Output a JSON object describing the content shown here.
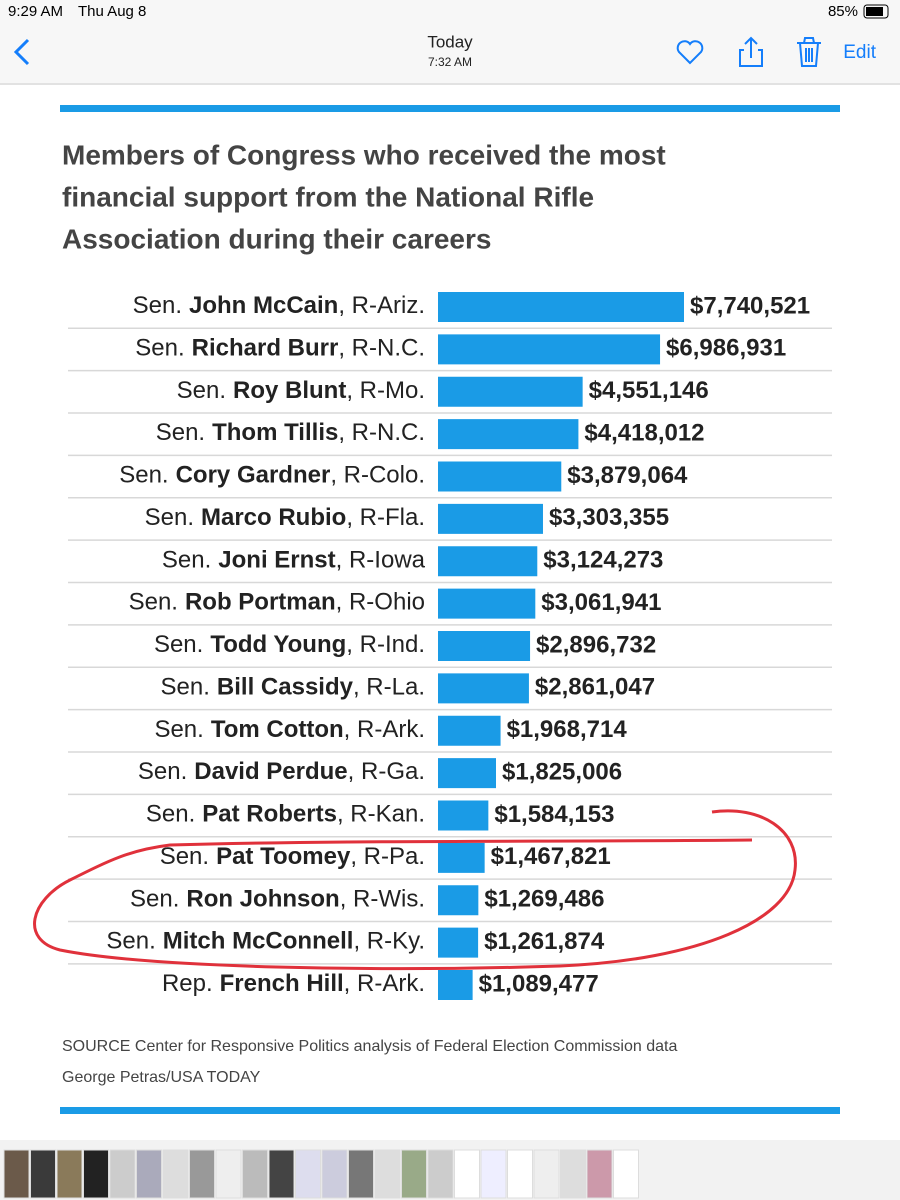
{
  "status_bar": {
    "time": "9:29 AM",
    "date": "Thu Aug 8",
    "battery": "85%"
  },
  "nav": {
    "title": "Today",
    "subtitle": "7:32 AM",
    "edit": "Edit"
  },
  "chart_data": {
    "type": "bar",
    "orientation": "horizontal",
    "title": [
      "Members of Congress who received the most",
      "financial support from the National Rifle",
      "Association during their careers"
    ],
    "titles": [
      "Sen.",
      "Sen.",
      "Sen.",
      "Sen.",
      "Sen.",
      "Sen.",
      "Sen.",
      "Sen.",
      "Sen.",
      "Sen.",
      "Sen.",
      "Sen.",
      "Sen.",
      "Sen.",
      "Sen.",
      "Sen.",
      "Rep."
    ],
    "categories": [
      "John McCain",
      "Richard Burr",
      "Roy Blunt",
      "Thom Tillis",
      "Cory Gardner",
      "Marco Rubio",
      "Joni Ernst",
      "Rob Portman",
      "Todd Young",
      "Bill Cassidy",
      "Tom Cotton",
      "David Perdue",
      "Pat Roberts",
      "Pat Toomey",
      "Ron Johnson",
      "Mitch McConnell",
      "French Hill"
    ],
    "districts": [
      ", R-Ariz.",
      ", R-N.C.",
      ", R-Mo.",
      ", R-N.C.",
      ", R-Colo.",
      ", R-Fla.",
      ", R-Iowa",
      ", R-Ohio",
      ", R-Ind.",
      ", R-La.",
      ", R-Ark.",
      ", R-Ga.",
      ", R-Kan.",
      ", R-Pa.",
      ", R-Wis.",
      ", R-Ky.",
      ", R-Ark."
    ],
    "values": [
      7740521,
      6986931,
      4551146,
      4418012,
      3879064,
      3303355,
      3124273,
      3061941,
      2896732,
      2861047,
      1968714,
      1825006,
      1584153,
      1467821,
      1269486,
      1261874,
      1089477
    ],
    "value_labels": [
      "$7,740,521",
      "$6,986,931",
      "$4,551,146",
      "$4,418,012",
      "$3,879,064",
      "$3,303,355",
      "$3,124,273",
      "$3,061,941",
      "$2,896,732",
      "$2,861,047",
      "$1,968,714",
      "$1,825,006",
      "$1,584,153",
      "$1,467,821",
      "$1,269,486",
      "$1,261,874",
      "$1,089,477"
    ],
    "color": "#1a9be6",
    "source": "SOURCE Center for Responsive Politics analysis of Federal Election Commission data",
    "credit": "George Petras/USA TODAY"
  }
}
